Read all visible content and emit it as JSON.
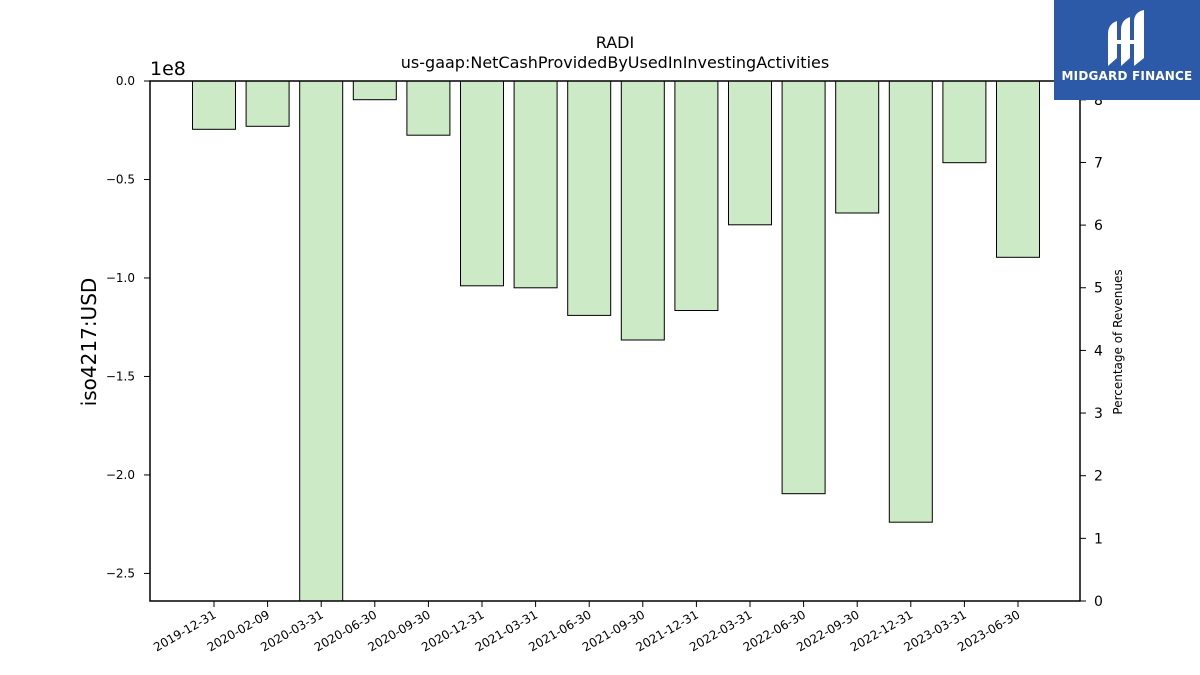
{
  "chart_data": {
    "type": "bar",
    "title": "RADI",
    "subtitle": "us-gaap:NetCashProvidedByUsedInInvestingActivities",
    "ylabel": "iso4217:USD",
    "y_offset_label": "1e8",
    "y2label": "Percentage of Revenues",
    "categories": [
      "2019-12-31",
      "2020-02-09",
      "2020-03-31",
      "2020-06-30",
      "2020-09-30",
      "2020-12-31",
      "2021-03-31",
      "2021-06-30",
      "2021-09-30",
      "2021-12-31",
      "2022-03-31",
      "2022-06-30",
      "2022-09-30",
      "2022-12-31",
      "2023-03-31",
      "2023-06-30"
    ],
    "values": [
      -24500000,
      -23000000,
      -264000000,
      -9500000,
      -27500000,
      -104000000,
      -105000000,
      -119000000,
      -131500000,
      -116500000,
      -73000000,
      -209500000,
      -67000000,
      -224000000,
      -41500000,
      -89500000
    ],
    "ylim": [
      -264000000,
      0
    ],
    "yticks": [
      0.0,
      -0.5,
      -1.0,
      -1.5,
      -2.0,
      -2.5
    ],
    "y2lim": [
      0,
      8.3
    ],
    "y2ticks": [
      0,
      1,
      2,
      3,
      4,
      5,
      6,
      7,
      8
    ],
    "bar_color": "#cdeac6",
    "bar_edge_color": "#000000",
    "grid": false,
    "legend": "none"
  },
  "brand": {
    "name": "MIDGARD FINANCE",
    "color": "#2d5aa8",
    "icon": "midgard-logo-icon"
  }
}
